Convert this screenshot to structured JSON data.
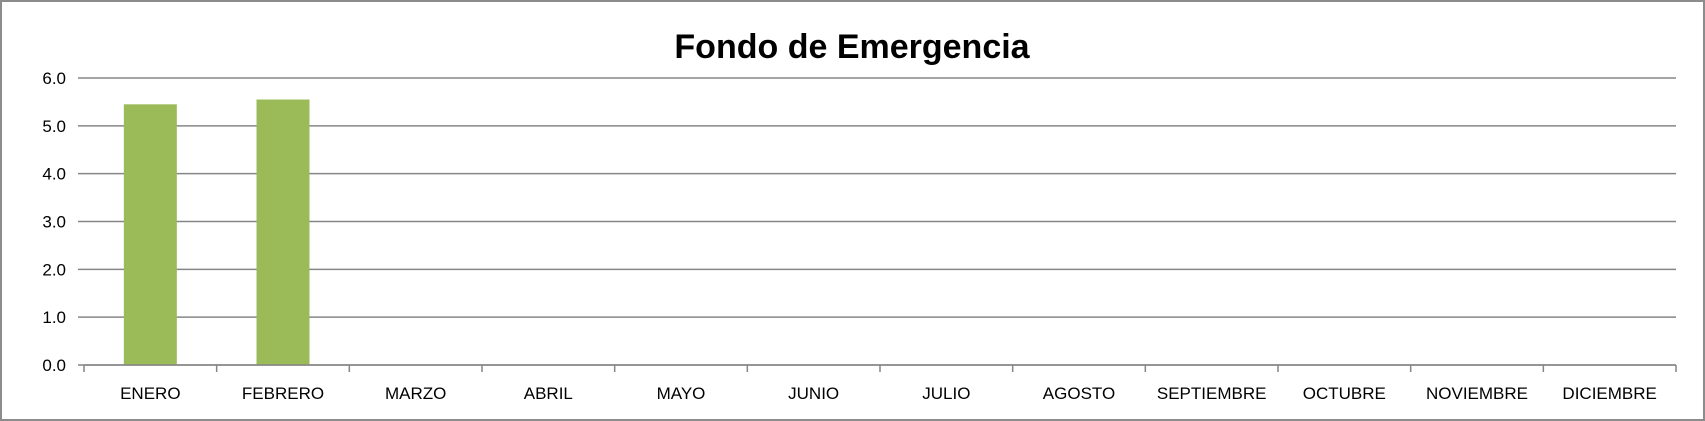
{
  "chart_data": {
    "type": "bar",
    "title": "Fondo de Emergencia",
    "xlabel": "",
    "ylabel": "",
    "categories": [
      "ENERO",
      "FEBRERO",
      "MARZO",
      "ABRIL",
      "MAYO",
      "JUNIO",
      "JULIO",
      "AGOSTO",
      "SEPTIEMBRE",
      "OCTUBRE",
      "NOVIEMBRE",
      "DICIEMBRE"
    ],
    "values": [
      5.45,
      5.55,
      null,
      null,
      null,
      null,
      null,
      null,
      null,
      null,
      null,
      null
    ],
    "ylim": [
      0,
      6
    ],
    "yticks": [
      "0.0",
      "1.0",
      "2.0",
      "3.0",
      "4.0",
      "5.0",
      "6.0"
    ],
    "grid": true,
    "legend": "none",
    "colors": {
      "bar": "#9BBB59",
      "grid": "#868686",
      "border": "#8c8c8c"
    }
  }
}
